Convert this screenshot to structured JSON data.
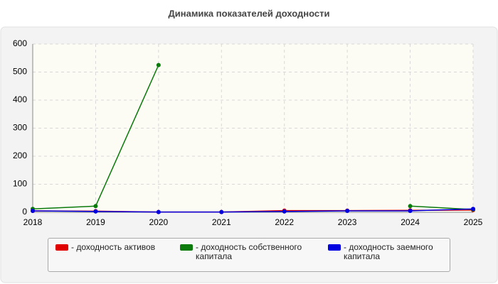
{
  "chart_data": {
    "type": "line",
    "title": "Динамика показателей доходности",
    "x": [
      2018,
      2019,
      2020,
      2021,
      2022,
      2023,
      2024,
      2025
    ],
    "xlim": [
      2018,
      2025
    ],
    "xticks": [
      2018,
      2019,
      2020,
      2021,
      2022,
      2023,
      2024,
      2025
    ],
    "ylim": [
      0,
      600
    ],
    "yticks": [
      0,
      100,
      200,
      300,
      400,
      500,
      600
    ],
    "grid": true,
    "series": [
      {
        "name": "- доходность активов",
        "color": "#e00000",
        "values": [
          5,
          4,
          1,
          1,
          6,
          6,
          7,
          8
        ]
      },
      {
        "name": "- доходность собственного капитала",
        "color": "#0a7a0a",
        "values": [
          12,
          22,
          525,
          null,
          null,
          null,
          22,
          10
        ]
      },
      {
        "name": "- доходность заемного капитала",
        "color": "#0000e0",
        "values": [
          5,
          3,
          1,
          1,
          3,
          5,
          5,
          12
        ]
      }
    ]
  }
}
